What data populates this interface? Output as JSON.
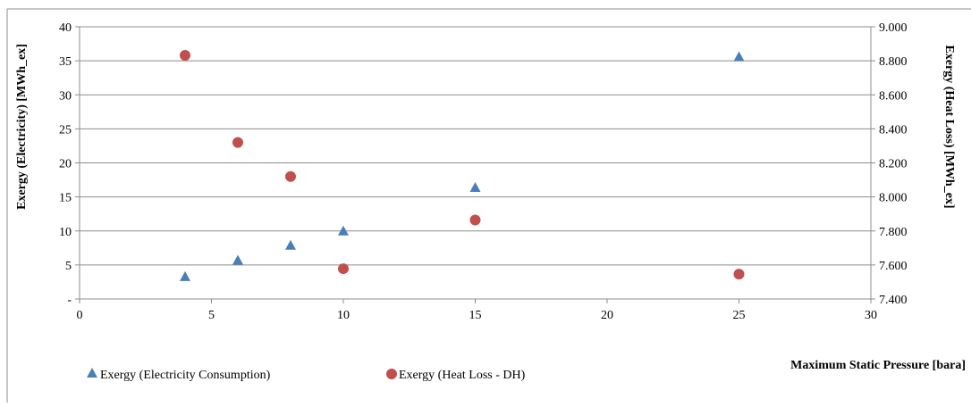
{
  "chart_data": {
    "type": "scatter",
    "xlabel": "Maximum Static Pressure [bara]",
    "ylabel": "Exergy (Electricity) [MWh_ex]",
    "y2label": "Exergy (Heat Loss) [MWh_ex]",
    "xlim": [
      0,
      30
    ],
    "ylim": [
      0,
      40
    ],
    "y2lim": [
      7.4,
      9.0
    ],
    "x_ticks": [
      "0",
      "5",
      "10",
      "15",
      "20",
      "25",
      "30"
    ],
    "y_ticks": [
      "-",
      "5",
      "10",
      "15",
      "20",
      "25",
      "30",
      "35",
      "40"
    ],
    "y2_ticks": [
      "7.400",
      "7.600",
      "7.800",
      "8.000",
      "8.200",
      "8.400",
      "8.600",
      "8.800",
      "9.000"
    ],
    "grid": "horizontal",
    "legend_position": "bottom-left",
    "series": [
      {
        "name": "Exergy (Electricity Consumption)",
        "axis": "left",
        "marker": "triangle",
        "color": "#4a7ebb",
        "points": [
          {
            "x": 4,
            "y": 3.3
          },
          {
            "x": 6,
            "y": 5.7
          },
          {
            "x": 8,
            "y": 7.9
          },
          {
            "x": 10,
            "y": 10.0
          },
          {
            "x": 15,
            "y": 16.4
          },
          {
            "x": 25,
            "y": 35.6
          }
        ]
      },
      {
        "name": "Exergy (Heat Loss - DH)",
        "axis": "right",
        "marker": "circle",
        "color": "#c0504d",
        "points": [
          {
            "x": 4,
            "y": 8.832
          },
          {
            "x": 6,
            "y": 8.32
          },
          {
            "x": 8,
            "y": 8.12
          },
          {
            "x": 10,
            "y": 7.578
          },
          {
            "x": 15,
            "y": 7.864
          },
          {
            "x": 25,
            "y": 7.546
          }
        ]
      }
    ]
  }
}
